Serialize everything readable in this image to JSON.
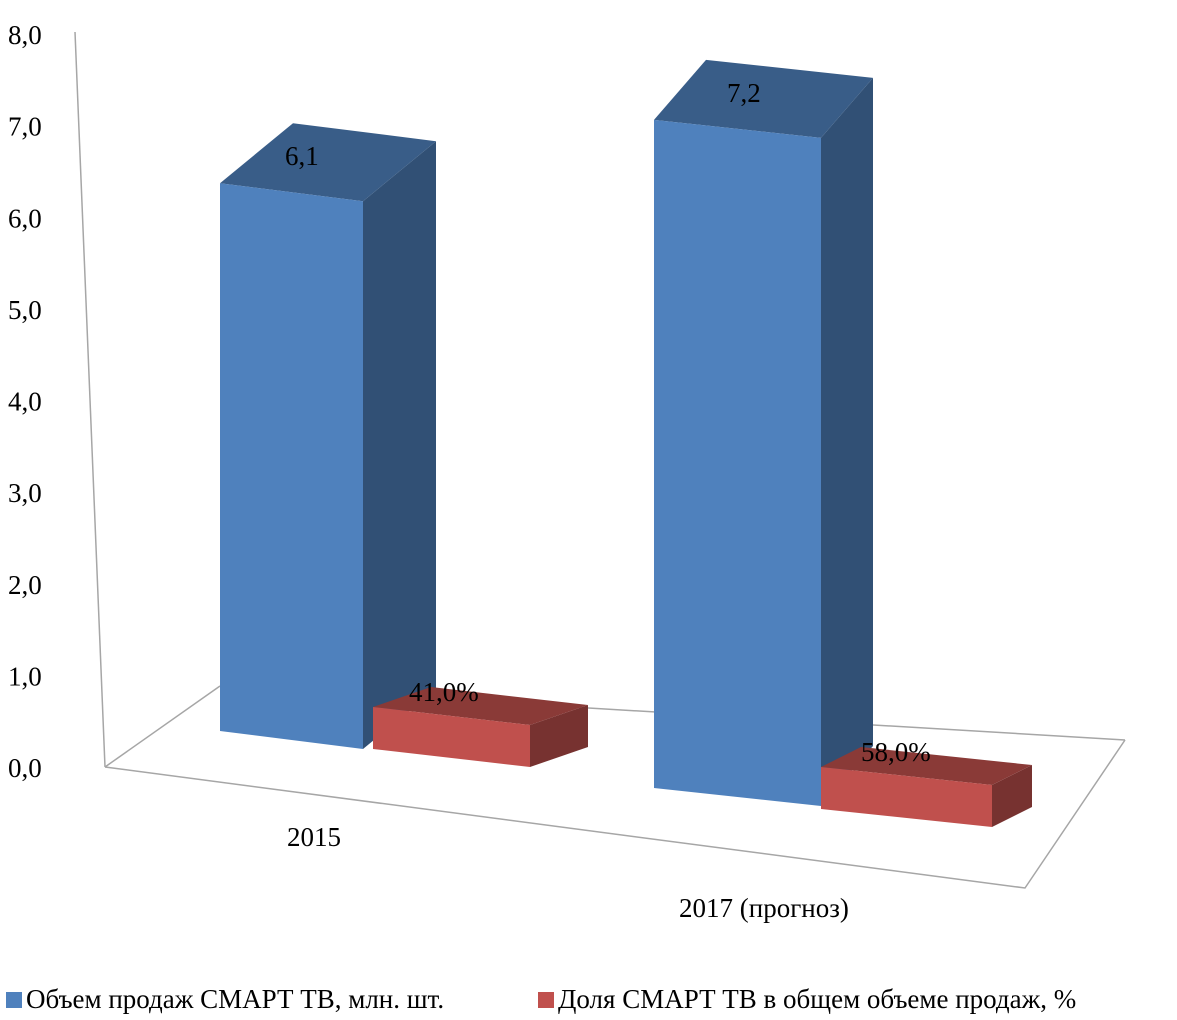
{
  "chart_data": {
    "type": "bar",
    "categories": [
      "2015",
      "2017 (прогноз)"
    ],
    "series": [
      {
        "name": "Объем продаж СМАРТ ТВ, млн. шт.",
        "values": [
          6.1,
          7.2
        ],
        "labels": [
          "6,1",
          "7,2"
        ],
        "color": "#4f81bd"
      },
      {
        "name": "Доля СМАРТ ТВ в общем объеме продаж, %",
        "values": [
          0.41,
          0.58
        ],
        "labels": [
          "41,0%",
          "58,0%"
        ],
        "color": "#c0504d"
      }
    ],
    "ylim": [
      0,
      8
    ],
    "yticks": [
      "0,0",
      "1,0",
      "2,0",
      "3,0",
      "4,0",
      "5,0",
      "6,0",
      "7,0",
      "8,0"
    ],
    "three_d": true,
    "grid": false,
    "legend_position": "bottom"
  }
}
